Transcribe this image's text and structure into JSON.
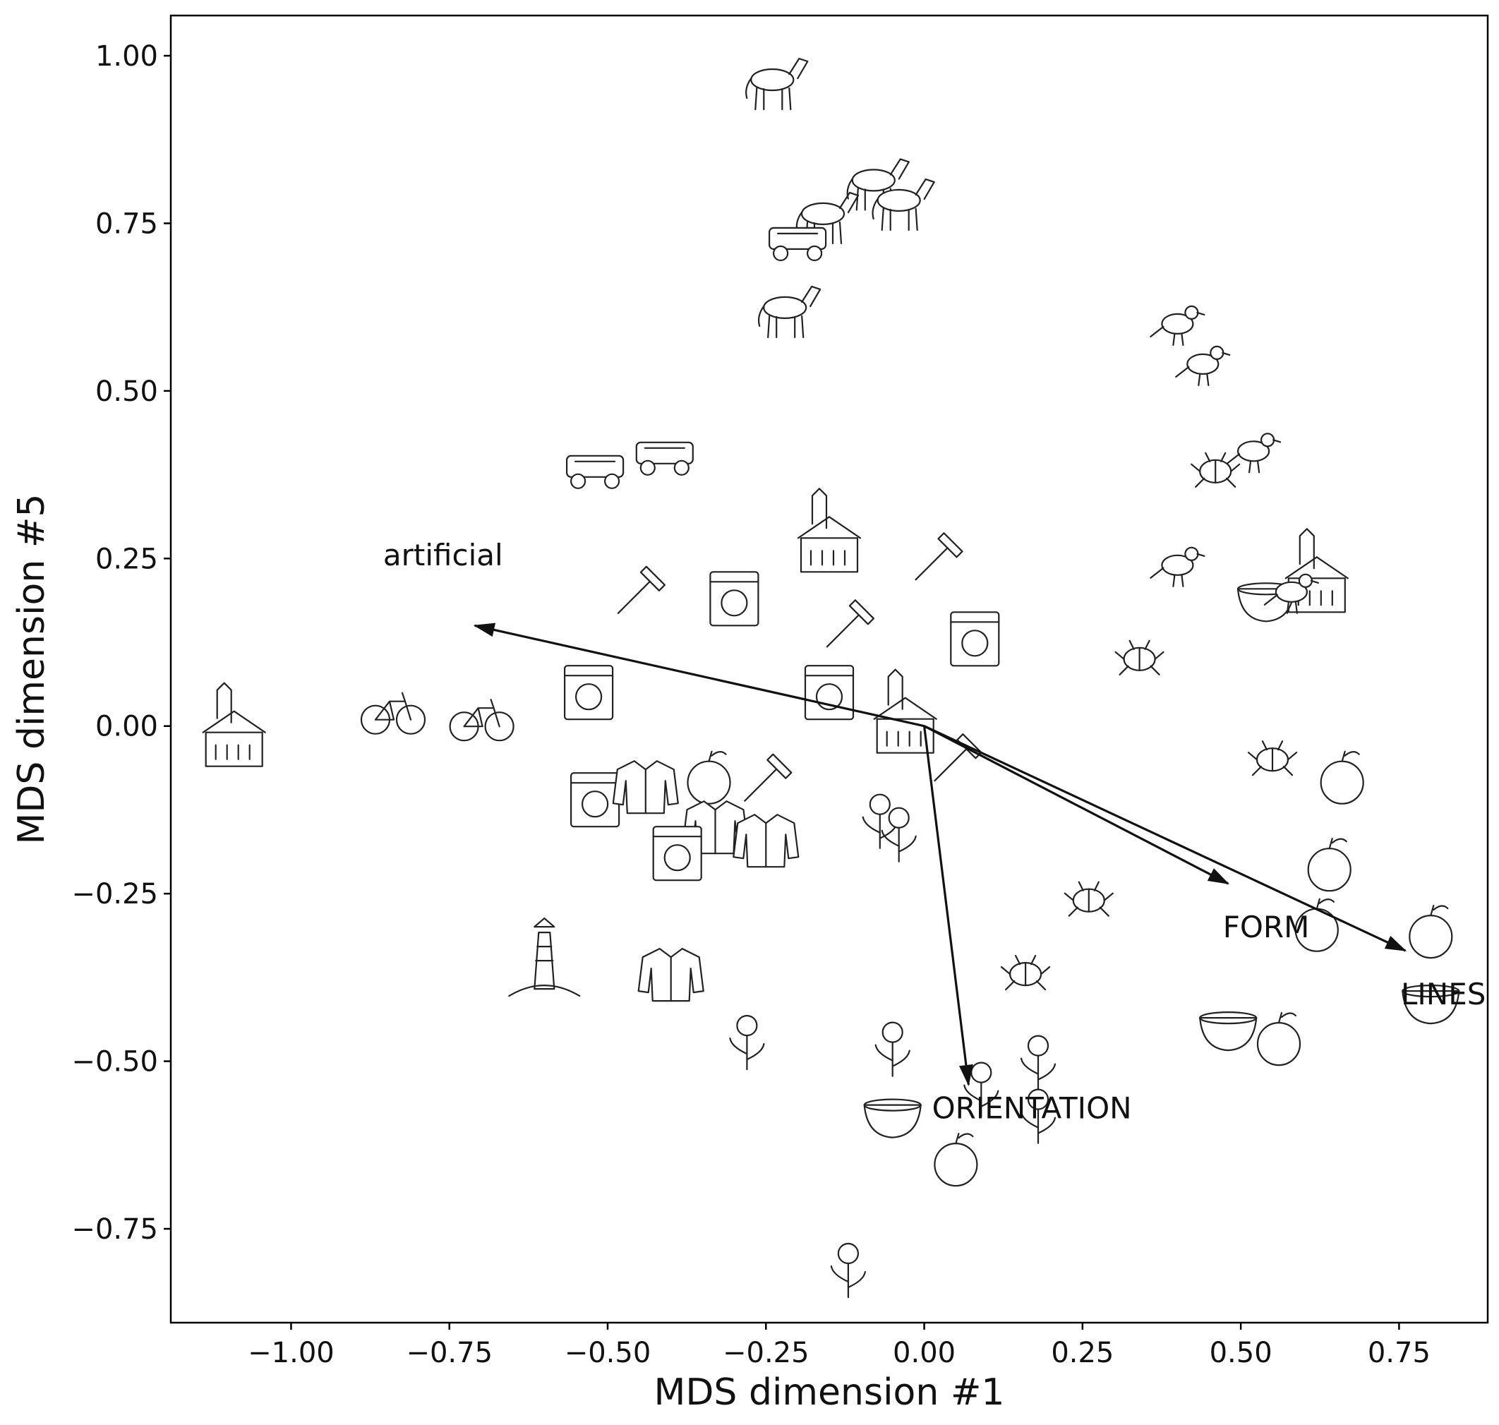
{
  "chart_data": {
    "type": "scatter",
    "xlabel": "MDS dimension #1",
    "ylabel": "MDS dimension #5",
    "xlim": [
      -1.19,
      0.89
    ],
    "ylim": [
      -0.89,
      1.06
    ],
    "xticks": [
      -1.0,
      -0.75,
      -0.5,
      -0.25,
      0.0,
      0.25,
      0.5,
      0.75
    ],
    "xtick_labels": [
      "−1.00",
      "−0.75",
      "−0.50",
      "−0.25",
      "0.00",
      "0.25",
      "0.50",
      "0.75"
    ],
    "yticks": [
      -0.75,
      -0.5,
      -0.25,
      0.0,
      0.25,
      0.5,
      0.75,
      1.0
    ],
    "ytick_labels": [
      "−0.75",
      "−0.50",
      "−0.25",
      "0.00",
      "0.25",
      "0.50",
      "0.75",
      "1.00"
    ],
    "grid": false,
    "vectors": [
      {
        "label": "artificial",
        "x_end": -0.71,
        "y_end": 0.15,
        "label_x": -0.76,
        "label_y": 0.24
      },
      {
        "label": "FORM",
        "x_end": 0.48,
        "y_end": -0.235,
        "label_x": 0.54,
        "label_y": -0.315
      },
      {
        "label": "LINES",
        "x_end": 0.76,
        "y_end": -0.335,
        "label_x": 0.82,
        "label_y": -0.415
      },
      {
        "label": "ORIENTATION",
        "x_end": 0.07,
        "y_end": -0.535,
        "label_x": 0.17,
        "label_y": -0.585
      }
    ],
    "vector_origin": [
      0.0,
      0.0
    ],
    "points": [
      {
        "item": "horse",
        "x": -0.24,
        "y": 0.96,
        "icon": "horse-icon"
      },
      {
        "item": "donkey",
        "x": -0.08,
        "y": 0.81,
        "icon": "donkey-icon"
      },
      {
        "item": "goat",
        "x": -0.04,
        "y": 0.78,
        "icon": "goat-icon"
      },
      {
        "item": "cow",
        "x": -0.16,
        "y": 0.76,
        "icon": "cow-icon"
      },
      {
        "item": "car",
        "x": -0.2,
        "y": 0.72,
        "icon": "car-icon"
      },
      {
        "item": "deer",
        "x": -0.22,
        "y": 0.62,
        "icon": "deer-icon"
      },
      {
        "item": "stork",
        "x": 0.4,
        "y": 0.6,
        "icon": "stork-icon"
      },
      {
        "item": "pigeon",
        "x": 0.44,
        "y": 0.54,
        "icon": "pigeon-icon"
      },
      {
        "item": "owl",
        "x": 0.52,
        "y": 0.41,
        "icon": "owl-icon"
      },
      {
        "item": "ant",
        "x": 0.46,
        "y": 0.38,
        "icon": "ant-icon"
      },
      {
        "item": "tractor",
        "x": -0.52,
        "y": 0.38,
        "icon": "tractor-icon"
      },
      {
        "item": "bus",
        "x": -0.41,
        "y": 0.4,
        "icon": "bus-icon"
      },
      {
        "item": "pyramid",
        "x": -0.15,
        "y": 0.27,
        "icon": "pyramid-icon"
      },
      {
        "item": "saw",
        "x": 0.02,
        "y": 0.25,
        "icon": "saw-icon"
      },
      {
        "item": "parrot",
        "x": 0.4,
        "y": 0.24,
        "icon": "parrot-icon"
      },
      {
        "item": "igloo",
        "x": 0.62,
        "y": 0.21,
        "icon": "igloo-icon"
      },
      {
        "item": "teapot",
        "x": 0.54,
        "y": 0.19,
        "icon": "teapot-icon"
      },
      {
        "item": "bird",
        "x": 0.58,
        "y": 0.2,
        "icon": "bird-icon"
      },
      {
        "item": "hammer",
        "x": -0.45,
        "y": 0.2,
        "icon": "hammer-icon"
      },
      {
        "item": "toaster",
        "x": -0.3,
        "y": 0.19,
        "icon": "toaster-icon"
      },
      {
        "item": "pliers",
        "x": -0.12,
        "y": 0.15,
        "icon": "pliers-icon"
      },
      {
        "item": "salt shaker",
        "x": 0.08,
        "y": 0.13,
        "icon": "salt-shaker-icon"
      },
      {
        "item": "fly",
        "x": 0.34,
        "y": 0.1,
        "icon": "fly-icon"
      },
      {
        "item": "washing machine",
        "x": -0.53,
        "y": 0.05,
        "icon": "washing-machine-icon"
      },
      {
        "item": "television",
        "x": -0.15,
        "y": 0.05,
        "icon": "television-icon"
      },
      {
        "item": "church",
        "x": -1.09,
        "y": -0.02,
        "icon": "church-icon"
      },
      {
        "item": "scooter",
        "x": -0.84,
        "y": 0.02,
        "icon": "scooter-icon"
      },
      {
        "item": "bicycle",
        "x": -0.7,
        "y": 0.01,
        "icon": "bicycle-icon"
      },
      {
        "item": "windmill",
        "x": -0.03,
        "y": 0.0,
        "icon": "windmill-icon"
      },
      {
        "item": "knife",
        "x": 0.05,
        "y": -0.05,
        "icon": "knife-icon"
      },
      {
        "item": "ladybug",
        "x": 0.55,
        "y": -0.05,
        "icon": "ladybug-icon"
      },
      {
        "item": "lemon",
        "x": 0.66,
        "y": -0.08,
        "icon": "lemon-icon"
      },
      {
        "item": "dishwasher",
        "x": -0.52,
        "y": -0.11,
        "icon": "dishwasher-icon"
      },
      {
        "item": "coat",
        "x": -0.44,
        "y": -0.09,
        "icon": "coat-icon"
      },
      {
        "item": "banana",
        "x": -0.34,
        "y": -0.08,
        "icon": "banana-icon"
      },
      {
        "item": "shovel",
        "x": -0.25,
        "y": -0.08,
        "icon": "shovel-icon"
      },
      {
        "item": "jacket",
        "x": -0.33,
        "y": -0.15,
        "icon": "jacket-icon"
      },
      {
        "item": "shirt",
        "x": -0.25,
        "y": -0.17,
        "icon": "shirt-icon"
      },
      {
        "item": "microwave",
        "x": -0.39,
        "y": -0.19,
        "icon": "microwave-icon"
      },
      {
        "item": "carrot",
        "x": -0.07,
        "y": -0.14,
        "icon": "carrot-icon"
      },
      {
        "item": "asparagus",
        "x": -0.04,
        "y": -0.16,
        "icon": "asparagus-icon"
      },
      {
        "item": "pepper",
        "x": 0.64,
        "y": -0.21,
        "icon": "pepper-icon"
      },
      {
        "item": "butterfly",
        "x": 0.26,
        "y": -0.26,
        "icon": "butterfly-icon"
      },
      {
        "item": "onion",
        "x": 0.62,
        "y": -0.3,
        "icon": "onion-icon"
      },
      {
        "item": "raspberry",
        "x": 0.8,
        "y": -0.31,
        "icon": "raspberry-icon"
      },
      {
        "item": "lighthouse",
        "x": -0.6,
        "y": -0.35,
        "icon": "lighthouse-icon"
      },
      {
        "item": "uniform",
        "x": -0.4,
        "y": -0.37,
        "icon": "uniform-icon"
      },
      {
        "item": "dragonfly",
        "x": 0.16,
        "y": -0.37,
        "icon": "dragonfly-icon"
      },
      {
        "item": "lens",
        "x": 0.8,
        "y": -0.41,
        "icon": "lens-icon"
      },
      {
        "item": "tulip",
        "x": -0.28,
        "y": -0.47,
        "icon": "tulip-icon"
      },
      {
        "item": "palm tree",
        "x": -0.05,
        "y": -0.48,
        "icon": "palm-tree-icon"
      },
      {
        "item": "rose",
        "x": 0.18,
        "y": -0.5,
        "icon": "rose-icon"
      },
      {
        "item": "bowl",
        "x": 0.48,
        "y": -0.45,
        "icon": "bowl-icon"
      },
      {
        "item": "apple",
        "x": 0.56,
        "y": -0.47,
        "icon": "apple-icon"
      },
      {
        "item": "broccoli",
        "x": 0.09,
        "y": -0.54,
        "icon": "broccoli-icon"
      },
      {
        "item": "glass",
        "x": -0.05,
        "y": -0.58,
        "icon": "glass-icon"
      },
      {
        "item": "sunflower",
        "x": 0.18,
        "y": -0.58,
        "icon": "sunflower-icon"
      },
      {
        "item": "cherries",
        "x": 0.05,
        "y": -0.65,
        "icon": "cherries-icon"
      },
      {
        "item": "dandelion",
        "x": -0.12,
        "y": -0.81,
        "icon": "dandelion-icon"
      }
    ]
  }
}
